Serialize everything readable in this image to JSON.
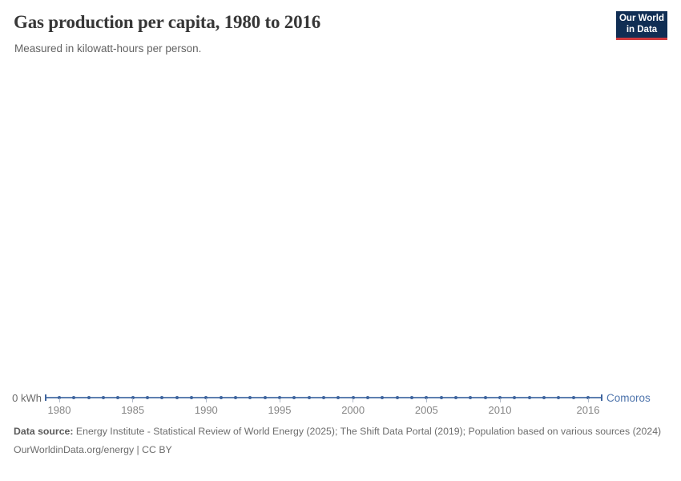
{
  "header": {
    "title": "Gas production per capita, 1980 to 2016",
    "subtitle": "Measured in kilowatt-hours per person."
  },
  "logo": {
    "line1": "Our World",
    "line2": "in Data"
  },
  "chart_data": {
    "type": "line",
    "title": "Gas production per capita, 1980 to 2016",
    "unit": "kilowatt-hours per person",
    "xlim": [
      1980,
      2016
    ],
    "ylim": [
      0,
      0
    ],
    "grid": false,
    "legend_position": "end-of-line",
    "y_zero_label": "0 kWh",
    "x": [
      1980,
      1981,
      1982,
      1983,
      1984,
      1985,
      1986,
      1987,
      1988,
      1989,
      1990,
      1991,
      1992,
      1993,
      1994,
      1995,
      1996,
      1997,
      1998,
      1999,
      2000,
      2001,
      2002,
      2003,
      2004,
      2005,
      2006,
      2007,
      2008,
      2009,
      2010,
      2011,
      2012,
      2013,
      2014,
      2015,
      2016
    ],
    "series": [
      {
        "name": "Comoros",
        "values": [
          0,
          0,
          0,
          0,
          0,
          0,
          0,
          0,
          0,
          0,
          0,
          0,
          0,
          0,
          0,
          0,
          0,
          0,
          0,
          0,
          0,
          0,
          0,
          0,
          0,
          0,
          0,
          0,
          0,
          0,
          0,
          0,
          0,
          0,
          0,
          0,
          0
        ]
      }
    ],
    "x_tick_years": [
      1980,
      1985,
      1990,
      1995,
      2000,
      2005,
      2010,
      2016
    ],
    "x_tick_labels": [
      "1980",
      "1985",
      "1990",
      "1995",
      "2000",
      "2005",
      "2010",
      "2016"
    ]
  },
  "colors": {
    "line": "#5d7fb0",
    "point": "#3f659e",
    "tick": "#b4bcc9",
    "entity_label": "#4e74ac",
    "axis_tick_text": "#868686",
    "axis_zero_text": "#696969",
    "title_text": "#373737",
    "subtitle_text": "#636363",
    "footer_text": "#6d6d6d",
    "footer_label_text": "#5a5a5a",
    "logo_bg": "#102e54",
    "logo_accent": "#cf3a3e"
  },
  "footer": {
    "datasource_label": "Data source:",
    "datasource_text": " Energy Institute - Statistical Review of World Energy (2025); The Shift Data Portal (2019); Population based on various sources (2024)",
    "license_line": "OurWorldinData.org/energy | CC BY"
  }
}
